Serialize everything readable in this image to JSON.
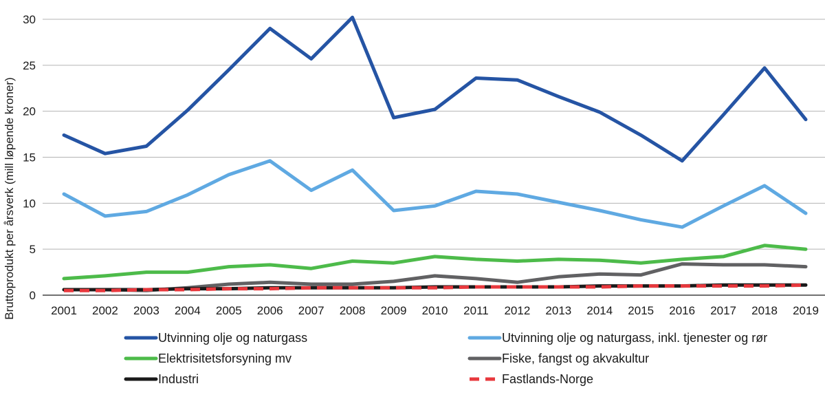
{
  "chart_data": {
    "type": "line",
    "title": "",
    "xlabel": "",
    "ylabel": "Bruttoprodukt per årsverk (mill løpende kroner)",
    "ylim": [
      0,
      30
    ],
    "yticks": [
      0,
      5,
      10,
      15,
      20,
      25,
      30
    ],
    "grid": true,
    "legend_position": "bottom",
    "categories": [
      "2001",
      "2002",
      "2003",
      "2004",
      "2005",
      "2006",
      "2007",
      "2008",
      "2009",
      "2010",
      "2011",
      "2012",
      "2013",
      "2014",
      "2015",
      "2016",
      "2017",
      "2018",
      "2019"
    ],
    "series": [
      {
        "name": "Utvinning olje og naturgass",
        "color": "#2554a4",
        "dashed": false,
        "values": [
          17.4,
          15.4,
          16.2,
          20.1,
          24.5,
          29.0,
          25.7,
          30.2,
          19.3,
          20.2,
          23.6,
          23.4,
          21.6,
          19.9,
          17.4,
          14.6,
          19.6,
          24.7,
          19.1
        ]
      },
      {
        "name": "Utvinning olje og naturgass, inkl. tjenester og rør",
        "color": "#5fa9e2",
        "dashed": false,
        "values": [
          11.0,
          8.6,
          9.1,
          10.9,
          13.1,
          14.6,
          11.4,
          13.6,
          9.2,
          9.7,
          11.3,
          11.0,
          10.1,
          9.2,
          8.2,
          7.4,
          9.7,
          11.9,
          8.9
        ]
      },
      {
        "name": "Elektrisitetsforsyning mv",
        "color": "#4dbb4a",
        "dashed": false,
        "values": [
          1.8,
          2.1,
          2.5,
          2.5,
          3.1,
          3.3,
          2.9,
          3.7,
          3.5,
          4.2,
          3.9,
          3.7,
          3.9,
          3.8,
          3.5,
          3.9,
          4.2,
          5.4,
          5.0
        ]
      },
      {
        "name": "Fiske, fangst og akvakultur",
        "color": "#616163",
        "dashed": false,
        "values": [
          0.6,
          0.6,
          0.5,
          0.8,
          1.2,
          1.4,
          1.2,
          1.2,
          1.5,
          2.1,
          1.8,
          1.4,
          2.0,
          2.3,
          2.2,
          3.4,
          3.3,
          3.3,
          3.1
        ]
      },
      {
        "name": "Industri",
        "color": "#1a1a1a",
        "dashed": false,
        "values": [
          0.6,
          0.6,
          0.6,
          0.7,
          0.7,
          0.8,
          0.8,
          0.8,
          0.8,
          0.9,
          0.9,
          0.9,
          0.9,
          1.0,
          1.0,
          1.0,
          1.1,
          1.1,
          1.1
        ]
      },
      {
        "name": "Fastlands-Norge",
        "color": "#e8383d",
        "dashed": true,
        "values": [
          0.5,
          0.5,
          0.6,
          0.6,
          0.7,
          0.7,
          0.8,
          0.8,
          0.8,
          0.8,
          0.9,
          0.9,
          0.9,
          0.9,
          1.0,
          1.0,
          1.0,
          1.0,
          1.1
        ]
      }
    ]
  }
}
